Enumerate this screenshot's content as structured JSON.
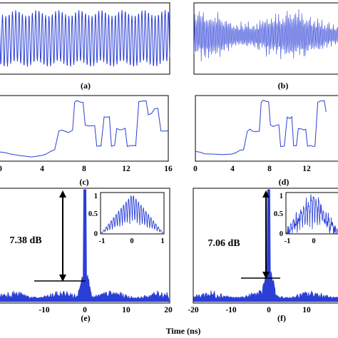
{
  "figure": {
    "xlabel": "Time (ns)",
    "colors": {
      "trace": "#2b3fd6",
      "axis": "#000000",
      "background": "#ffffff"
    },
    "panels": {
      "a": {
        "label": "(a)"
      },
      "b": {
        "label": "(b)"
      },
      "c": {
        "label": "(c)"
      },
      "d": {
        "label": "(d)"
      },
      "e": {
        "label": "(e)",
        "db_label": "7.38 dB"
      },
      "f": {
        "label": "(f)",
        "db_label": "7.06 dB"
      }
    }
  },
  "chart_data": [
    {
      "id": "a",
      "type": "line",
      "title": "",
      "xlabel": "",
      "ylabel": "",
      "description_of_signal": "periodic oscillation with nearly constant amplitude",
      "series": [
        {
          "shape": "regular-oscillation"
        }
      ]
    },
    {
      "id": "b",
      "type": "line",
      "title": "",
      "xlabel": "",
      "ylabel": "",
      "series": [
        {
          "shape": "dense-chaotic-oscillation"
        }
      ]
    },
    {
      "id": "c",
      "type": "line",
      "title": "",
      "xlabel": "",
      "ylabel": "",
      "xlim": [
        0,
        16
      ],
      "x_ticks": [
        "0",
        "4",
        "8",
        "12",
        "16"
      ],
      "series": [
        {
          "x": [
            0,
            0.5,
            1,
            2,
            3,
            4,
            4.4,
            4.8,
            5.2,
            5.6,
            5.9,
            6.1,
            6.5,
            6.9,
            7.1,
            7.3,
            7.6,
            7.9,
            8.1,
            8.4,
            8.7,
            9.0,
            9.2,
            9.4,
            9.6,
            9.9,
            10.2,
            10.4,
            10.6,
            10.9,
            11.1,
            11.4,
            11.7,
            11.9,
            12.1,
            12.4,
            12.7,
            12.9,
            13.2,
            13.5,
            13.7,
            13.9,
            14.1,
            14.4,
            14.7,
            15.0,
            15.3,
            15.6,
            16
          ],
          "y": [
            0.1,
            0.08,
            0.06,
            0.04,
            0.03,
            0.05,
            0.08,
            0.12,
            0.15,
            0.45,
            0.47,
            0.44,
            0.43,
            0.45,
            0.92,
            0.95,
            0.92,
            0.92,
            0.55,
            0.52,
            0.53,
            0.54,
            0.2,
            0.2,
            0.21,
            0.68,
            0.66,
            0.67,
            0.2,
            0.21,
            0.48,
            0.47,
            0.47,
            0.48,
            0.2,
            0.21,
            0.2,
            0.2,
            0.92,
            0.94,
            0.93,
            0.93,
            0.7,
            0.72,
            0.8,
            0.82,
            0.45,
            0.44,
            0.45
          ]
        }
      ]
    },
    {
      "id": "d",
      "type": "line",
      "title": "",
      "xlabel": "",
      "ylabel": "",
      "xlim": [
        0,
        16
      ],
      "x_ticks": [
        "0",
        "4",
        "8",
        "12"
      ],
      "series": [
        {
          "x": [
            0,
            0.5,
            1,
            2,
            3,
            4,
            4.4,
            4.8,
            5.2,
            5.6,
            5.9,
            6.1,
            6.5,
            6.9,
            7.1,
            7.3,
            7.6,
            7.9,
            8.1,
            8.4,
            8.7,
            9.0,
            9.2,
            9.4,
            9.6,
            9.9,
            10.2,
            10.4,
            10.6,
            10.9,
            11.1,
            11.4,
            11.7,
            11.9,
            12.1,
            12.4,
            12.7,
            12.9,
            13.2,
            13.5,
            13.7,
            13.9,
            14.1
          ],
          "y": [
            0.12,
            0.1,
            0.08,
            0.06,
            0.05,
            0.06,
            0.09,
            0.12,
            0.15,
            0.45,
            0.47,
            0.44,
            0.43,
            0.45,
            0.92,
            0.95,
            0.92,
            0.92,
            0.55,
            0.52,
            0.53,
            0.54,
            0.2,
            0.2,
            0.21,
            0.68,
            0.66,
            0.67,
            0.2,
            0.21,
            0.48,
            0.47,
            0.47,
            0.48,
            0.2,
            0.21,
            0.2,
            0.2,
            0.92,
            0.94,
            0.93,
            0.93,
            0.75
          ]
        }
      ]
    },
    {
      "id": "e",
      "type": "line",
      "title": "",
      "ylabel": "",
      "xlim": [
        -20,
        20
      ],
      "x_ticks": [
        "-10",
        "0",
        "10",
        "20"
      ],
      "peak_to_sidelobe": "7.38 dB",
      "inset": {
        "xlim": [
          -1,
          1
        ],
        "ylim": [
          0,
          1
        ],
        "x_ticks": [
          "-1",
          "0",
          "1"
        ],
        "y_ticks": [
          "0",
          "0.5",
          "1"
        ],
        "shape": "triangular-comb"
      }
    },
    {
      "id": "f",
      "type": "line",
      "title": "",
      "ylabel": "",
      "xlim": [
        -20,
        20
      ],
      "x_ticks": [
        "-20",
        "-10",
        "0",
        "10"
      ],
      "peak_to_sidelobe": "7.06 dB",
      "inset": {
        "xlim": [
          -1,
          1
        ],
        "ylim": [
          0,
          1
        ],
        "x_ticks": [
          "-1",
          "0",
          "1"
        ],
        "y_ticks": [
          "0",
          "0.5",
          "1"
        ],
        "shape": "noisy-triangular-comb"
      }
    }
  ]
}
